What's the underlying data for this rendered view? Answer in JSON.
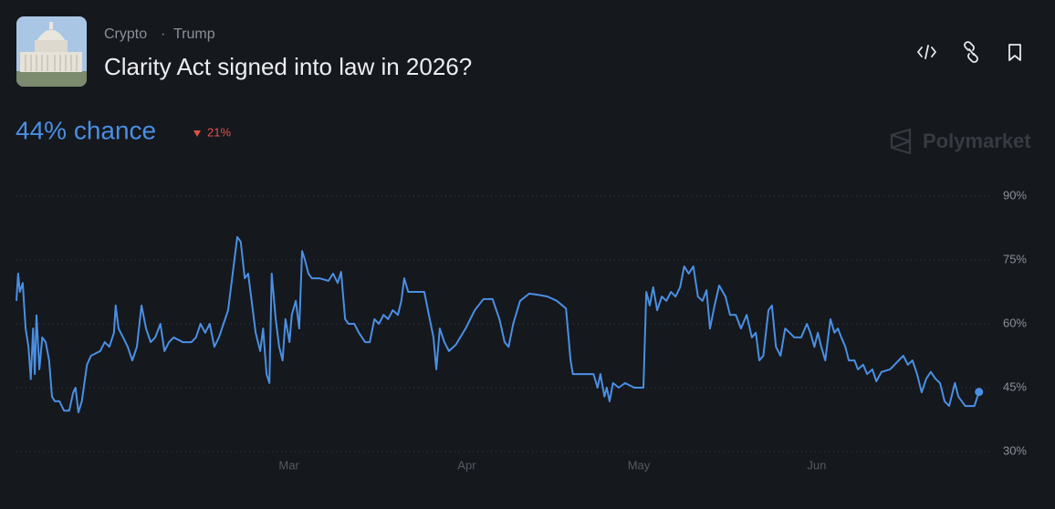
{
  "header": {
    "category": "Crypto",
    "tag": "Trump",
    "title": "Clarity Act signed into law in 2026?",
    "chance": "44% chance",
    "change": "21%",
    "watermark": "Polymarket"
  },
  "chart_data": {
    "type": "line",
    "color": "#4a8fe3",
    "grid": true,
    "x": [
      12.5,
      12.8,
      13.1,
      13.6,
      14.1,
      14.6,
      15.0,
      15.4,
      15.7,
      16.0,
      16.5,
      17.0,
      17.6,
      18.2,
      18.7,
      19.2,
      20.0,
      20.8,
      21.7,
      22.4,
      22.8,
      23.3,
      23.9,
      24.8,
      25.5,
      27.1,
      27.9,
      28.7,
      29.5,
      29.8,
      30.3,
      31.1,
      31.9,
      32.7,
      33.5,
      34.3,
      35.1,
      35.9,
      36.7,
      37.6,
      38.3,
      39.1,
      39.9,
      41.5,
      43.0,
      43.8,
      44.6,
      45.4,
      46.2,
      47.0,
      47.8,
      48.6,
      49.4,
      50.2,
      51.0,
      51.6,
      52.3,
      52.9,
      53.5,
      54.2,
      55.0,
      55.5,
      56.1,
      56.6,
      57.0,
      57.7,
      58.3,
      58.9,
      59.4,
      60.1,
      60.5,
      61.2,
      61.8,
      62.3,
      62.8,
      63.4,
      64.0,
      65.3,
      66.9,
      67.7,
      68.5,
      69.1,
      69.8,
      70.4,
      71.4,
      72.2,
      73.3,
      74.1,
      74.9,
      75.7,
      76.5,
      77.3,
      78.1,
      79.0,
      79.6,
      80.1,
      80.8,
      82.0,
      83.6,
      84.4,
      85.2,
      85.7,
      86.3,
      87.1,
      87.9,
      89.1,
      90.8,
      92.4,
      93.9,
      95.5,
      96.7,
      97.6,
      98.3,
      99.1,
      100.3,
      101.9,
      103.5,
      105.1,
      106.7,
      108.3,
      109.1,
      109.5,
      111.4,
      113.1,
      113.8,
      114.3,
      115.0,
      115.4,
      115.9,
      116.5,
      117.5,
      118.6,
      120.2,
      121.8,
      122.3,
      122.9,
      123.5,
      124.2,
      125.0,
      125.8,
      126.6,
      127.4,
      128.2,
      128.9,
      129.7,
      130.5,
      131.3,
      132.1,
      132.8,
      133.4,
      134.2,
      135.0,
      136.1,
      136.9,
      137.9,
      138.8,
      139.8,
      140.7,
      141.4,
      142.0,
      142.7,
      143.6,
      144.2,
      144.9,
      145.7,
      146.5,
      147.3,
      148.1,
      149.3,
      150.3,
      150.9,
      151.6,
      152.2,
      152.8,
      153.5,
      154.4,
      155.1,
      155.7,
      156.3,
      157.0,
      157.6,
      158.6,
      159.2,
      160.1,
      160.8,
      161.7,
      162.4,
      163.3,
      164.8,
      166.3,
      167.1,
      167.9,
      168.7,
      169.5,
      170.3,
      171.1,
      171.9,
      172.7,
      173.5,
      174.3,
      175.1,
      176.1,
      176.7,
      177.9,
      179.5,
      180.3
    ],
    "values": [
      65.4,
      71.8,
      67.5,
      69.6,
      58.9,
      54.6,
      47,
      58.9,
      48.2,
      62,
      49.3,
      56.8,
      55.7,
      51.4,
      42.9,
      41.8,
      41.8,
      39.6,
      39.6,
      43.9,
      45,
      39.2,
      41.8,
      50.4,
      52.5,
      53.6,
      55.7,
      54.6,
      57.9,
      64.3,
      58.9,
      56.8,
      54.6,
      51.4,
      54.6,
      64.3,
      58.9,
      55.7,
      56.8,
      60,
      53.6,
      55.7,
      56.8,
      55.7,
      55.7,
      56.8,
      60,
      57.9,
      60,
      54.6,
      56.8,
      60,
      63.2,
      71.8,
      80.4,
      79.3,
      70.7,
      71.8,
      65.4,
      57.9,
      53.6,
      58.9,
      48.2,
      46.1,
      71.8,
      61.1,
      54.6,
      51.4,
      61.1,
      55.7,
      62.1,
      65.4,
      58.9,
      77.1,
      75,
      71.8,
      70.7,
      70.7,
      70.1,
      71.8,
      69.6,
      72.2,
      61.1,
      60,
      60,
      57.9,
      55.7,
      55.7,
      61.1,
      60,
      62.1,
      61.1,
      63.2,
      62.1,
      65.4,
      70.7,
      67.5,
      67.5,
      67.5,
      62.1,
      56.8,
      49.3,
      58.9,
      55.7,
      53.6,
      55.1,
      58.9,
      63.2,
      65.8,
      65.8,
      61.1,
      55.7,
      54.6,
      60,
      65.4,
      67.1,
      66.8,
      66.4,
      65.4,
      63.6,
      51.4,
      48.2,
      48.2,
      48.2,
      45,
      48.2,
      42.9,
      45,
      41.8,
      46.1,
      45,
      46.1,
      45,
      45,
      67.5,
      64.3,
      68.6,
      63.2,
      66.4,
      65.4,
      67.5,
      66.4,
      68.6,
      73.5,
      71.8,
      73.5,
      66.4,
      65.4,
      67.9,
      58.9,
      64.3,
      69,
      66.4,
      62.1,
      62.1,
      58.9,
      62.1,
      56.8,
      57.9,
      51.4,
      52.5,
      63.2,
      64.3,
      54.6,
      52.5,
      58.9,
      57.9,
      56.8,
      56.8,
      60,
      57.9,
      54.6,
      57.9,
      54.6,
      51.4,
      61.1,
      57.9,
      58.9,
      56.8,
      54.6,
      51.4,
      51.4,
      49.3,
      50.4,
      48.2,
      49.3,
      46.5,
      48.7,
      49.3,
      51.4,
      52.5,
      50.4,
      51.4,
      48.2,
      43.9,
      47.1,
      48.7,
      47.1,
      46.1,
      41.8,
      40.7,
      46.1,
      42.9,
      40.7,
      40.7,
      44
    ],
    "xlim": [
      12.5,
      180.5
    ],
    "xticks": [
      {
        "value": 60,
        "label": "Mar"
      },
      {
        "value": 91,
        "label": "Apr"
      },
      {
        "value": 121,
        "label": "May"
      },
      {
        "value": 152,
        "label": "Jun"
      }
    ],
    "ylim": [
      30,
      90
    ],
    "yticks": [
      {
        "value": 30,
        "label": "30%"
      },
      {
        "value": 45,
        "label": "45%"
      },
      {
        "value": 60,
        "label": "60%"
      },
      {
        "value": 75,
        "label": "75%"
      },
      {
        "value": 90,
        "label": "90%"
      }
    ]
  }
}
